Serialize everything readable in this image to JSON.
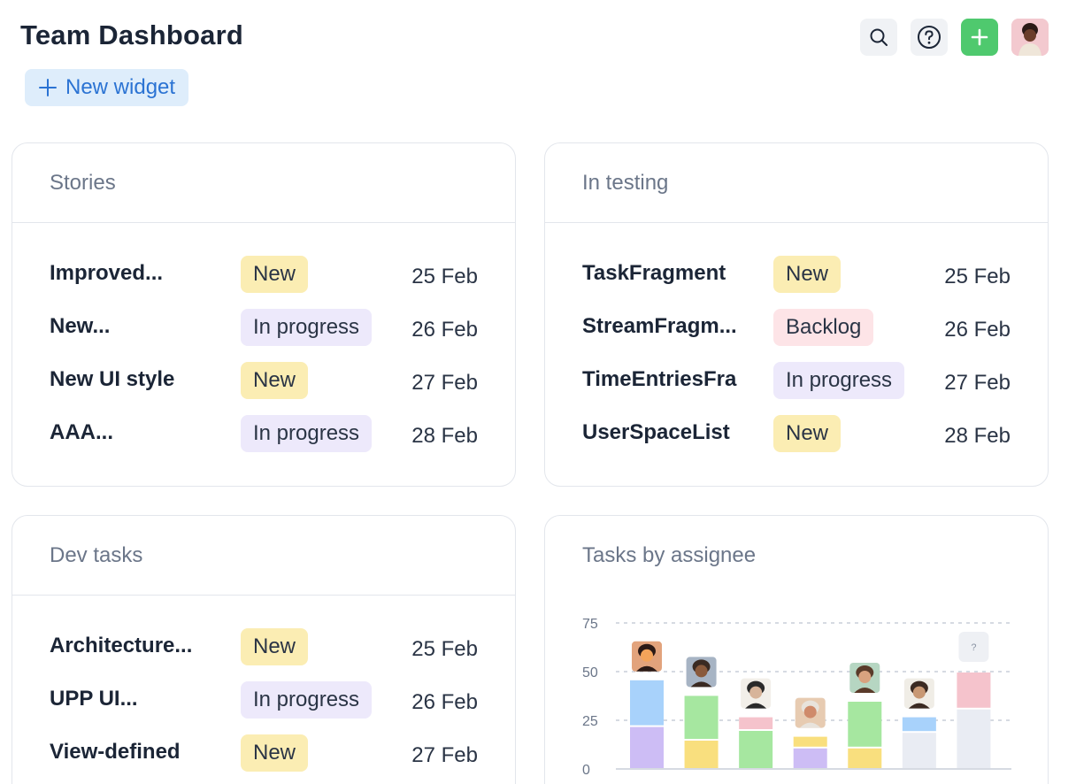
{
  "header": {
    "title": "Team Dashboard",
    "new_widget_label": "New widget",
    "actions": [
      "search-icon",
      "help-icon",
      "plus-icon",
      "avatar"
    ]
  },
  "colors": {
    "accent_green": "#4fc96e",
    "accent_blue": "#2b73d3",
    "badge_new": "#fbedb3",
    "badge_in_progress": "#ede9fb",
    "badge_backlog": "#fde4e7"
  },
  "cards": [
    {
      "title": "Stories",
      "rows": [
        {
          "name": "Improved...",
          "status": "New",
          "date": "25 Feb"
        },
        {
          "name": "New...",
          "status": "In progress",
          "date": "26 Feb"
        },
        {
          "name": "New UI style",
          "status": "New",
          "date": "27 Feb"
        },
        {
          "name": "AAA...",
          "status": "In progress",
          "date": "28 Feb"
        }
      ]
    },
    {
      "title": "In testing",
      "rows": [
        {
          "name": "TaskFragment",
          "status": "New",
          "date": "25 Feb"
        },
        {
          "name": "StreamFragm...",
          "status": "Backlog",
          "date": "26 Feb"
        },
        {
          "name": "TimeEntriesFra",
          "status": "In progress",
          "date": "27 Feb"
        },
        {
          "name": "UserSpaceList",
          "status": "New",
          "date": "28 Feb"
        }
      ]
    },
    {
      "title": "Dev tasks",
      "rows": [
        {
          "name": "Architecture...",
          "status": "New",
          "date": "25 Feb"
        },
        {
          "name": "UPP UI...",
          "status": "In progress",
          "date": "26 Feb"
        },
        {
          "name": "View-defined",
          "status": "New",
          "date": "27 Feb"
        }
      ]
    }
  ],
  "chart_card": {
    "title": "Tasks by assignee"
  },
  "chart_data": {
    "type": "bar",
    "stacked": true,
    "title": "Tasks by assignee",
    "ylim": [
      0,
      75
    ],
    "yticks": [
      "0",
      "25",
      "50",
      "75"
    ],
    "grid": true,
    "categories": [
      "",
      "",
      "",
      "",
      "",
      "",
      ""
    ],
    "unknown_assignee_marker": "?",
    "bars": [
      {
        "segments": [
          {
            "value": 22,
            "color": "#cdbdf5"
          },
          {
            "value": 24,
            "color": "#a8d2fb"
          }
        ]
      },
      {
        "segments": [
          {
            "value": 15,
            "color": "#f9df7e"
          },
          {
            "value": 23,
            "color": "#a6e7a0"
          }
        ]
      },
      {
        "segments": [
          {
            "value": 20,
            "color": "#a6e7a0"
          },
          {
            "value": 7,
            "color": "#f5c3cc"
          }
        ]
      },
      {
        "segments": [
          {
            "value": 11,
            "color": "#cdbdf5"
          },
          {
            "value": 6,
            "color": "#f9df7e"
          }
        ]
      },
      {
        "segments": [
          {
            "value": 11,
            "color": "#f9df7e"
          },
          {
            "value": 24,
            "color": "#a6e7a0"
          }
        ]
      },
      {
        "segments": [
          {
            "value": 19,
            "color": "#e9ecf3"
          },
          {
            "value": 8,
            "color": "#a8d2fb"
          }
        ]
      },
      {
        "segments": [
          {
            "value": 31,
            "color": "#e9ecf3"
          },
          {
            "value": 19,
            "color": "#f5c3cc"
          }
        ]
      }
    ]
  }
}
